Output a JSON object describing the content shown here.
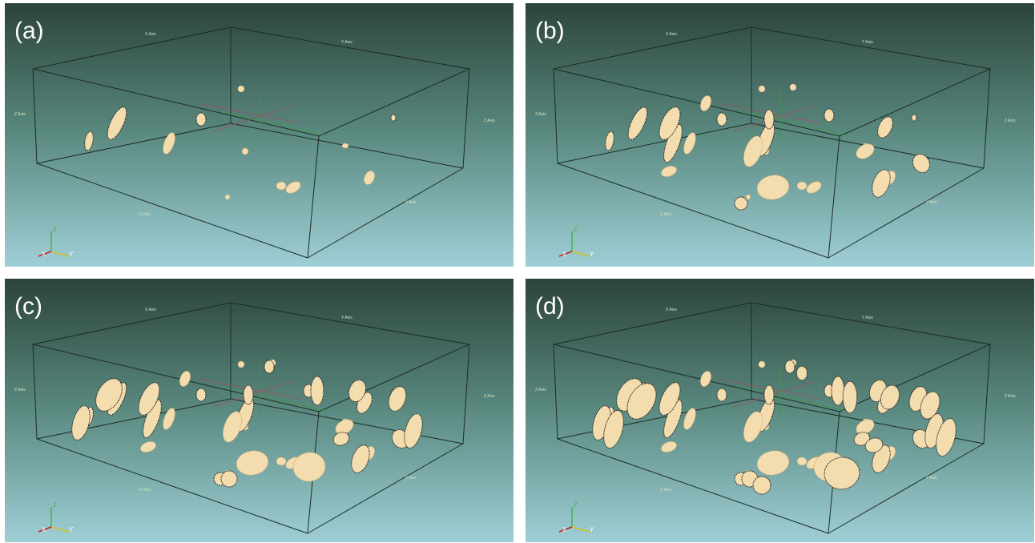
{
  "panels": [
    {
      "label": "(a)",
      "x_axis": "X Axis",
      "y_axis": "Y Axis",
      "z_axis": "Z Axis",
      "triad": {
        "z": "Z",
        "x": "X",
        "y": "Y"
      }
    },
    {
      "label": "(b)",
      "x_axis": "X Axis",
      "y_axis": "Y Axis",
      "z_axis": "Z Axis",
      "triad": {
        "z": "Z",
        "x": "X",
        "y": "Y"
      }
    },
    {
      "label": "(c)",
      "x_axis": "X Axis",
      "y_axis": "Y Axis",
      "z_axis": "Z Axis",
      "triad": {
        "z": "Z",
        "x": "X",
        "y": "Y"
      }
    },
    {
      "label": "(d)",
      "x_axis": "X Axis",
      "y_axis": "Y Axis",
      "z_axis": "Z Axis",
      "triad": {
        "z": "Z",
        "x": "X",
        "y": "Y"
      }
    }
  ]
}
